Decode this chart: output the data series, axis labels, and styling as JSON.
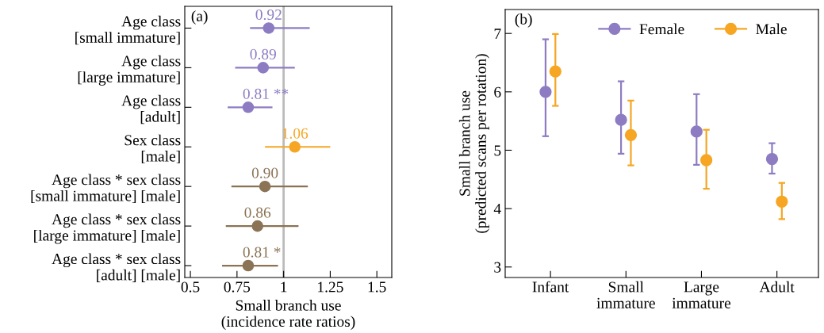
{
  "chart_data": [
    {
      "type": "scatter",
      "orientation": "horizontal",
      "categories": [
        "Age class\n[small immature]",
        "Age class\n[large immature]",
        "Age class\n[adult]",
        "Sex class\n[male]",
        "Age class * sex class\n[small immature] [male]",
        "Age class * sex class\n[large immature] [male]",
        "Age class * sex class\n[adult] [male]"
      ],
      "values": [
        0.92,
        0.89,
        0.81,
        1.06,
        0.9,
        0.86,
        0.81
      ],
      "errors": [
        [
          0.82,
          1.14
        ],
        [
          0.74,
          1.06
        ],
        [
          0.7,
          0.94
        ],
        [
          0.9,
          1.25
        ],
        [
          0.72,
          1.13
        ],
        [
          0.69,
          1.08
        ],
        [
          0.67,
          0.97
        ]
      ],
      "colors": [
        "#8e7cc3",
        "#8e7cc3",
        "#8e7cc3",
        "#f6a623",
        "#8b7355",
        "#8b7355",
        "#8b7355"
      ],
      "value_labels": [
        "0.92",
        "0.89",
        "0.81 **",
        "1.06",
        "0.90",
        "0.86",
        "0.81 *"
      ],
      "xlim": [
        0.47,
        1.58
      ],
      "xticks": [
        0.5,
        0.75,
        1,
        1.25,
        1.5
      ],
      "xlabel": "Small branch use\n(incidence rate ratios)",
      "ref_lines": [
        {
          "axis": "x",
          "value": 1,
          "color": "#bbbbbb"
        }
      ],
      "annotations": [
        "(a)"
      ],
      "marker": "circle",
      "grid": false
    },
    {
      "type": "scatter",
      "categories": [
        "Infant",
        "Small\nimmature",
        "Large\nimmature",
        "Adult"
      ],
      "series": [
        {
          "name": "Female",
          "color": "#8e7cc3",
          "values": [
            6.0,
            5.52,
            5.32,
            4.85
          ],
          "errors": [
            [
              5.24,
              6.9
            ],
            [
              4.94,
              6.18
            ],
            [
              4.75,
              5.96
            ],
            [
              4.6,
              5.12
            ]
          ]
        },
        {
          "name": "Male",
          "color": "#f6a623",
          "values": [
            6.35,
            5.26,
            4.83,
            4.12
          ],
          "errors": [
            [
              5.76,
              6.99
            ],
            [
              4.74,
              5.85
            ],
            [
              4.34,
              5.35
            ],
            [
              3.82,
              4.44
            ]
          ]
        }
      ],
      "ylim": [
        2.82,
        7.41
      ],
      "yticks": [
        3,
        4,
        5,
        6,
        7
      ],
      "ylabel": "Small branch use\n(predicted scans per rotation)",
      "annotations": [
        "(b)"
      ],
      "marker": "circle",
      "grid": false,
      "legend": "top"
    }
  ]
}
